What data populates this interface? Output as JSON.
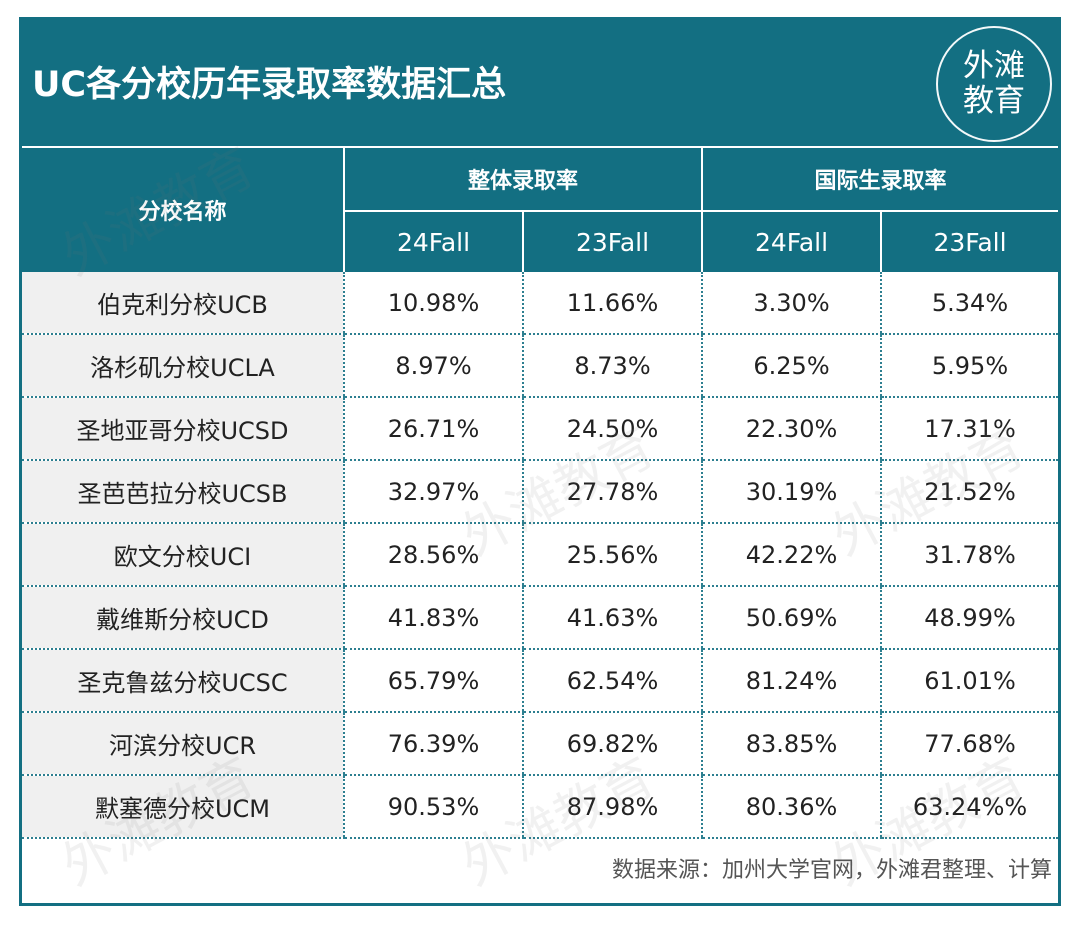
{
  "title": "UC各分校历年录取率数据汇总",
  "logo": {
    "line1": "外滩",
    "line2": "教育"
  },
  "watermark": "外滩教育",
  "table": {
    "name_header": "分校名称",
    "groups": [
      "整体录取率",
      "国际生录取率"
    ],
    "sub_headers": [
      "24Fall",
      "23Fall",
      "24Fall",
      "23Fall"
    ],
    "rows": [
      {
        "school": "伯克利分校UCB",
        "values": [
          "10.98%",
          "11.66%",
          "3.30%",
          "5.34%"
        ]
      },
      {
        "school": "洛杉矶分校UCLA",
        "values": [
          "8.97%",
          "8.73%",
          "6.25%",
          "5.95%"
        ]
      },
      {
        "school": "圣地亚哥分校UCSD",
        "values": [
          "26.71%",
          "24.50%",
          "22.30%",
          "17.31%"
        ]
      },
      {
        "school": "圣芭芭拉分校UCSB",
        "values": [
          "32.97%",
          "27.78%",
          "30.19%",
          "21.52%"
        ]
      },
      {
        "school": "欧文分校UCI",
        "values": [
          "28.56%",
          "25.56%",
          "42.22%",
          "31.78%"
        ]
      },
      {
        "school": "戴维斯分校UCD",
        "values": [
          "41.83%",
          "41.63%",
          "50.69%",
          "48.99%"
        ]
      },
      {
        "school": "圣克鲁兹分校UCSC",
        "values": [
          "65.79%",
          "62.54%",
          "81.24%",
          "61.01%"
        ]
      },
      {
        "school": "河滨分校UCR",
        "values": [
          "76.39%",
          "69.82%",
          "83.85%",
          "77.68%"
        ]
      },
      {
        "school": "默塞德分校UCM",
        "values": [
          "90.53%",
          "87.98%",
          "80.36%",
          "63.24%%"
        ]
      }
    ]
  },
  "source": "数据来源：加州大学官网，外滩君整理、计算",
  "colors": {
    "header_bg": "#136f82",
    "school_col_bg": "#f0f0f0",
    "border": "#2d7f90"
  }
}
